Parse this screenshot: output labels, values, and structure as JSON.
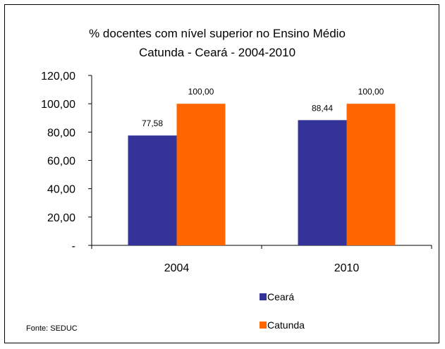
{
  "chart_data": {
    "type": "bar",
    "title": "% docentes com nível  superior no Ensino Médio",
    "subtitle": "Catunda -  Ceará - 2004-2010",
    "categories": [
      "2004",
      "2010"
    ],
    "series": [
      {
        "name": "Ceará",
        "color": "#333399",
        "values": [
          77.58,
          88.44
        ],
        "labels": [
          "77,58",
          "88,44"
        ]
      },
      {
        "name": "Catunda",
        "color": "#FF6600",
        "values": [
          100.0,
          100.0
        ],
        "labels": [
          "100,00",
          "100,00"
        ]
      }
    ],
    "ylim": [
      0,
      120
    ],
    "yticks": [
      0,
      20,
      40,
      60,
      80,
      100,
      120
    ],
    "ytick_labels": [
      "-",
      "20,00",
      "40,00",
      "60,00",
      "80,00",
      "100,00",
      "120,00"
    ],
    "xlabel": "",
    "ylabel": "",
    "grid": false,
    "legend_position": "bottom-right"
  },
  "source_note": "Fonte: SEDUC"
}
